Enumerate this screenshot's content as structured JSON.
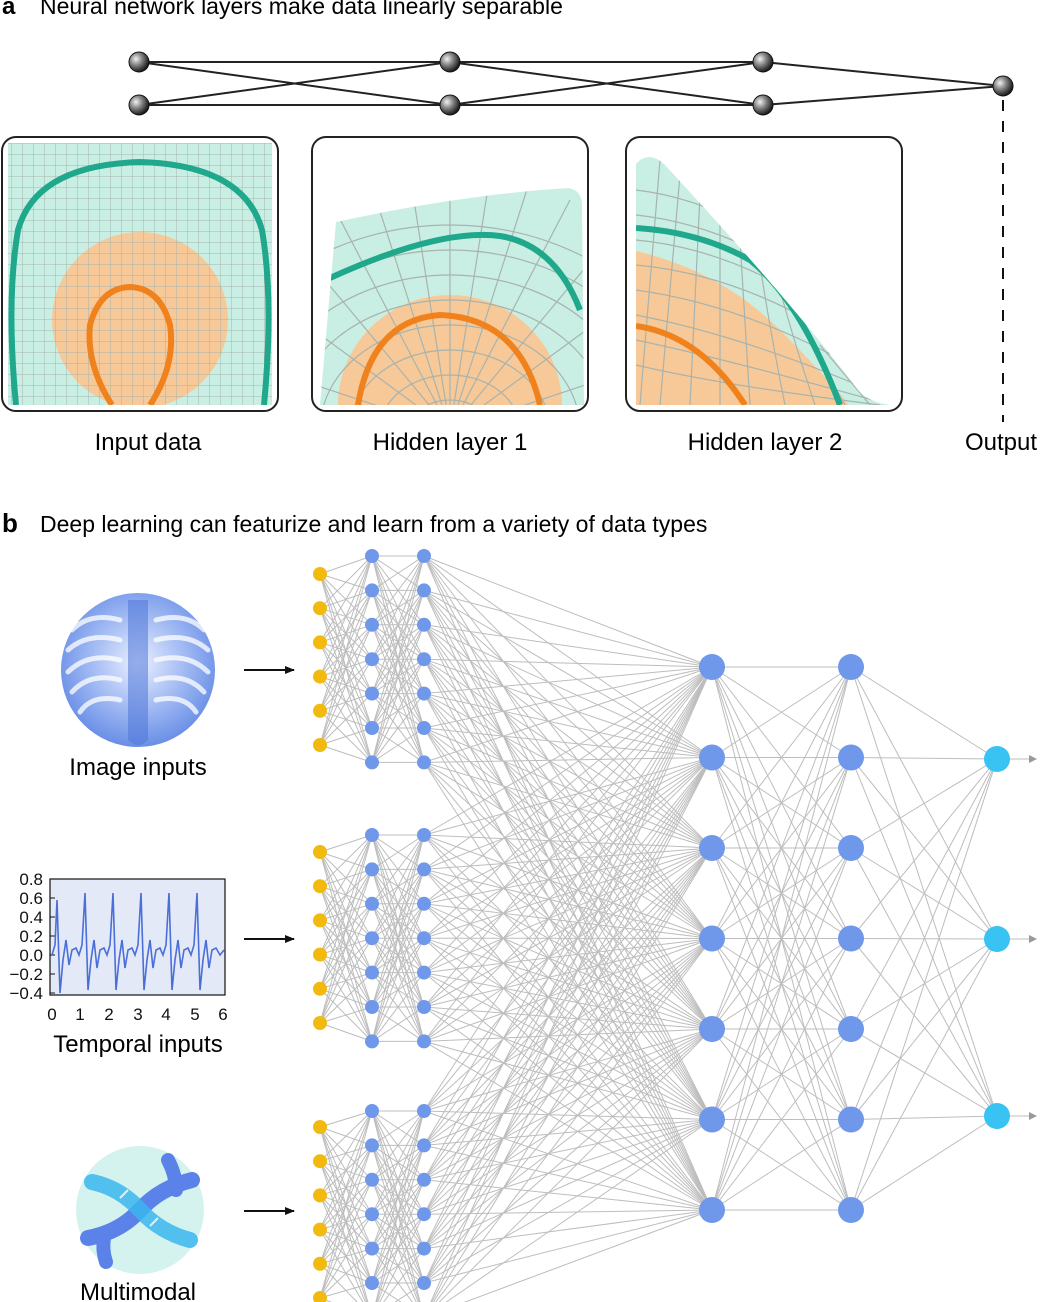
{
  "panel_a": {
    "letter": "a",
    "title": "Neural network layers make data linearly separable",
    "labels": [
      "Input data",
      "Hidden layer 1",
      "Hidden layer 2",
      "Output"
    ]
  },
  "panel_b": {
    "letter": "b",
    "title": "Deep learning can featurize and learn from a variety of data types",
    "input_labels": [
      "Image inputs",
      "Temporal inputs",
      "Multimodal"
    ],
    "temporal_plot": {
      "y_ticks": [
        "0.8",
        "0.6",
        "0.4",
        "0.2",
        "0.0",
        "−0.2",
        "−0.4"
      ],
      "x_ticks": [
        "0",
        "1",
        "2",
        "3",
        "4",
        "5",
        "6"
      ]
    }
  },
  "colors": {
    "teal_fill": "#c9efe4",
    "teal_line": "#1fa88c",
    "orange_fill": "#f8c998",
    "orange_line": "#f0821e",
    "input_node": "#f2b90f",
    "hidden_node": "#6f98ea",
    "output_node": "#38c3f3",
    "edge": "#bdbdbd"
  }
}
